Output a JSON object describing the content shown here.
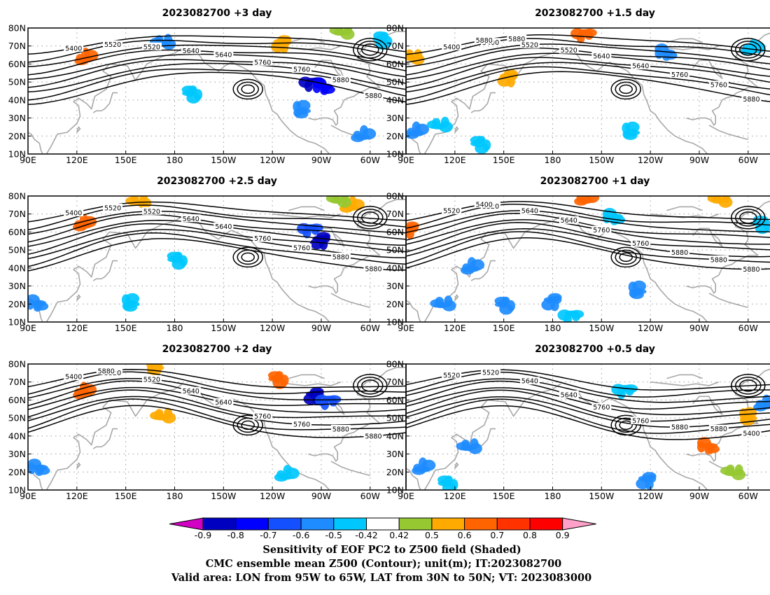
{
  "panels": [
    {
      "title": "2023082700 +3 day",
      "contour_labels": [
        "5400",
        "5520",
        "5520",
        "5640",
        "5640",
        "5760",
        "5760",
        "5880",
        "5880"
      ],
      "shading": [
        {
          "lon": 125,
          "lat": 63,
          "v": 0.6
        },
        {
          "lon": 172,
          "lat": 72,
          "v": -0.55
        },
        {
          "lon": 190,
          "lat": 44,
          "v": -0.5
        },
        {
          "lon": 246,
          "lat": 72,
          "v": 0.5
        },
        {
          "lon": 265,
          "lat": 50,
          "v": -0.85
        },
        {
          "lon": 272,
          "lat": 47,
          "v": -0.8
        },
        {
          "lon": 258,
          "lat": 34,
          "v": -0.6
        },
        {
          "lon": 295,
          "lat": 20,
          "v": -0.55
        },
        {
          "lon": 282,
          "lat": 78,
          "v": 0.45
        },
        {
          "lon": 307,
          "lat": 74,
          "v": -0.45
        }
      ]
    },
    {
      "title": "2023082700 +1.5 day",
      "contour_labels": [
        "5400",
        "5400",
        "5520",
        "5520",
        "5640",
        "5640",
        "5760",
        "5760",
        "5880",
        "5880",
        "5880"
      ],
      "shading": [
        {
          "lon": 96,
          "lat": 22,
          "v": -0.55
        },
        {
          "lon": 110,
          "lat": 26,
          "v": -0.5
        },
        {
          "lon": 135,
          "lat": 16,
          "v": -0.5
        },
        {
          "lon": 153,
          "lat": 53,
          "v": 0.55
        },
        {
          "lon": 200,
          "lat": 77,
          "v": 0.6
        },
        {
          "lon": 250,
          "lat": 66,
          "v": -0.55
        },
        {
          "lon": 228,
          "lat": 22,
          "v": -0.45
        },
        {
          "lon": 302,
          "lat": 68,
          "v": -0.5
        },
        {
          "lon": 93,
          "lat": 64,
          "v": 0.55
        }
      ]
    },
    {
      "title": "2023082700 +2.5 day",
      "contour_labels": [
        "5400",
        "5520",
        "5520",
        "5640",
        "5640",
        "5760",
        "5760",
        "5880",
        "5880"
      ],
      "shading": [
        {
          "lon": 124,
          "lat": 64,
          "v": 0.6
        },
        {
          "lon": 157,
          "lat": 77,
          "v": 0.55
        },
        {
          "lon": 181,
          "lat": 45,
          "v": -0.5
        },
        {
          "lon": 270,
          "lat": 56,
          "v": -0.85
        },
        {
          "lon": 264,
          "lat": 62,
          "v": -0.65
        },
        {
          "lon": 96,
          "lat": 20,
          "v": -0.55
        },
        {
          "lon": 153,
          "lat": 20,
          "v": -0.5
        },
        {
          "lon": 288,
          "lat": 74,
          "v": 0.5
        },
        {
          "lon": 280,
          "lat": 78,
          "v": 0.45
        }
      ]
    },
    {
      "title": "2023082700 +1 day",
      "contour_labels": [
        "5520",
        "5520",
        "5640",
        "5640",
        "5760",
        "5760",
        "5880",
        "5880",
        "5880",
        "5400"
      ],
      "shading": [
        {
          "lon": 130,
          "lat": 40,
          "v": -0.6
        },
        {
          "lon": 112,
          "lat": 20,
          "v": -0.55
        },
        {
          "lon": 150,
          "lat": 20,
          "v": -0.55
        },
        {
          "lon": 180,
          "lat": 22,
          "v": -0.6
        },
        {
          "lon": 192,
          "lat": 14,
          "v": -0.5
        },
        {
          "lon": 218,
          "lat": 68,
          "v": -0.5
        },
        {
          "lon": 232,
          "lat": 27,
          "v": -0.55
        },
        {
          "lon": 200,
          "lat": 78,
          "v": 0.6
        },
        {
          "lon": 282,
          "lat": 78,
          "v": 0.5
        },
        {
          "lon": 308,
          "lat": 65,
          "v": -0.5
        },
        {
          "lon": 92,
          "lat": 62,
          "v": 0.6
        }
      ]
    },
    {
      "title": "2023082700 +2 day",
      "contour_labels": [
        "5400",
        "5520",
        "5520",
        "5640",
        "5640",
        "5760",
        "5760",
        "5880",
        "5880",
        "5880"
      ],
      "shading": [
        {
          "lon": 124,
          "lat": 64,
          "v": 0.6
        },
        {
          "lon": 172,
          "lat": 51,
          "v": 0.55
        },
        {
          "lon": 243,
          "lat": 72,
          "v": 0.6
        },
        {
          "lon": 266,
          "lat": 63,
          "v": -0.85
        },
        {
          "lon": 275,
          "lat": 60,
          "v": -0.7
        },
        {
          "lon": 97,
          "lat": 22,
          "v": -0.55
        },
        {
          "lon": 168,
          "lat": 78,
          "v": 0.5
        },
        {
          "lon": 248,
          "lat": 18,
          "v": -0.5
        }
      ]
    },
    {
      "title": "2023082700 +0.5 day",
      "contour_labels": [
        "5520",
        "5520",
        "5640",
        "5640",
        "5760",
        "5760",
        "5880",
        "5880",
        "5400"
      ],
      "shading": [
        {
          "lon": 100,
          "lat": 22,
          "v": -0.55
        },
        {
          "lon": 128,
          "lat": 34,
          "v": -0.55
        },
        {
          "lon": 115,
          "lat": 14,
          "v": -0.45
        },
        {
          "lon": 238,
          "lat": 16,
          "v": -0.6
        },
        {
          "lon": 225,
          "lat": 66,
          "v": -0.5
        },
        {
          "lon": 276,
          "lat": 34,
          "v": 0.65
        },
        {
          "lon": 300,
          "lat": 50,
          "v": 0.55
        },
        {
          "lon": 310,
          "lat": 57,
          "v": -0.55
        },
        {
          "lon": 290,
          "lat": 20,
          "v": 0.45
        }
      ]
    }
  ],
  "axes": {
    "lon_ticks": [
      "90E",
      "120E",
      "150E",
      "180",
      "150W",
      "120W",
      "90W",
      "60W"
    ],
    "lat_ticks": [
      "80N",
      "70N",
      "60N",
      "50N",
      "40N",
      "30N",
      "20N",
      "10N"
    ]
  },
  "colorbar": {
    "ticks": [
      "-0.9",
      "-0.8",
      "-0.7",
      "-0.6",
      "-0.5",
      "-0.42",
      "0.42",
      "0.5",
      "0.6",
      "0.7",
      "0.8",
      "0.9"
    ],
    "colors": [
      "#d100c3",
      "#0000c0",
      "#0000ff",
      "#1450ff",
      "#1e8cff",
      "#00c8ff",
      "#ffffff",
      "#96c832",
      "#ffaa00",
      "#ff6400",
      "#ff3200",
      "#ff0000",
      "#ffa0c8"
    ]
  },
  "caption": {
    "line1": "Sensitivity of EOF PC2 to Z500 field (Shaded)",
    "line2": "CMC ensemble mean Z500 (Contour); unit(m); IT:2023082700",
    "line3": "Valid area: LON from 95W to 65W, LAT from 30N to 50N; VT: 2023083000"
  }
}
